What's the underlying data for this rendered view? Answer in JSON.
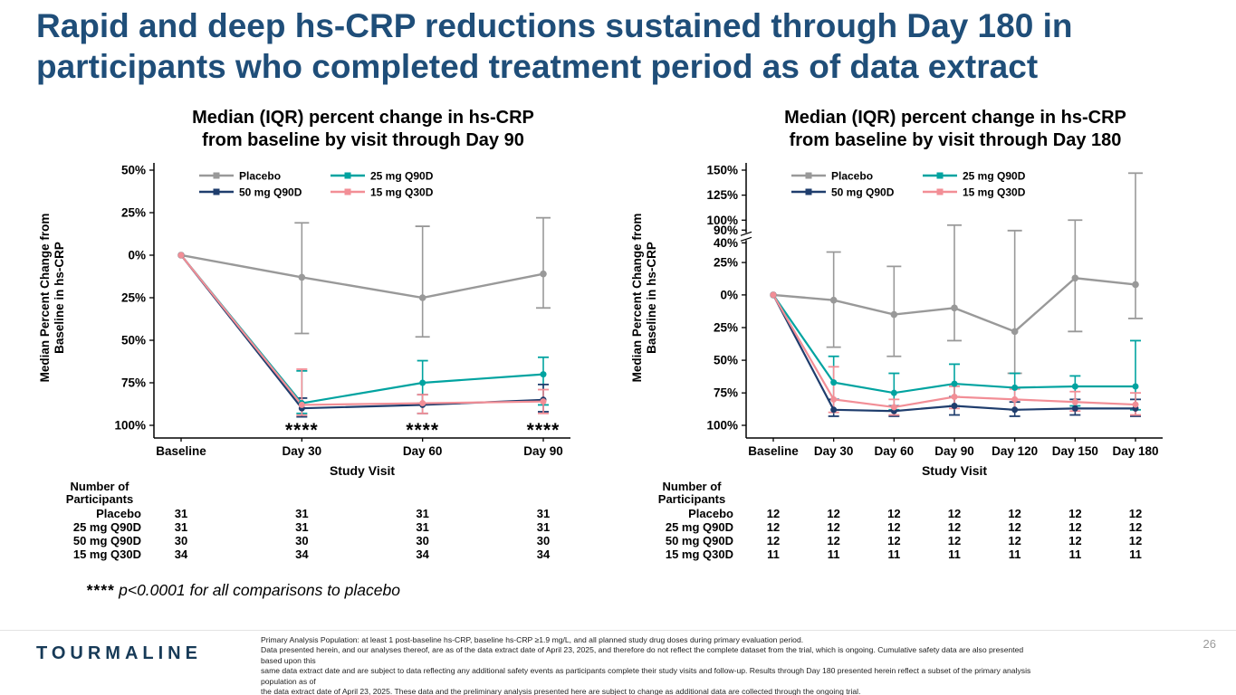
{
  "slide": {
    "title_lines": [
      "Rapid and deep hs-CRP reductions sustained through Day 180 in",
      "participants who completed treatment period as of data extract"
    ],
    "sig_stars": "****",
    "sig_text": "p<0.0001 for all comparisons to placebo",
    "logo_text": "TOURMALINE",
    "page_number": "26",
    "disclaimer_lines": [
      "Primary Analysis Population: at least 1 post-baseline hs-CRP, baseline hs-CRP ≥1.9 mg/L, and all planned study drug doses during primary evaluation period.",
      "Data presented herein, and our analyses thereof, are as of the data extract date of April 23, 2025, and therefore do not reflect the complete dataset from the trial, which is ongoing.  Cumulative safety data are also presented based upon this",
      "same data extract date and are subject to data reflecting any additional safety events as participants complete their study visits and follow-up. Results through Day 180 presented herein reflect a subset of the primary analysis population as of",
      "the data extract date of April 23, 2025. These data and the preliminary analysis presented here are subject to change as additional data are collected through the ongoing trial."
    ]
  },
  "colors": {
    "title": "#1f4e79",
    "placebo": "#999999",
    "teal": "#00a3a0",
    "navy": "#1f3d6d",
    "pink": "#f28e96",
    "axis": "#000000",
    "logo": "#173a57",
    "page_number": "#9a9a9a"
  },
  "chart_data": [
    {
      "type": "line",
      "title_lines": [
        "Median (IQR) percent change in hs-CRP",
        "from baseline by visit through Day 90"
      ],
      "ylabel_lines": [
        "Median Percent Change from",
        "Baseline in hs-CRP"
      ],
      "xlabel": "Study Visit",
      "categories": [
        "Baseline",
        "Day 30",
        "Day 60",
        "Day 90"
      ],
      "y_ticks": [
        {
          "label": "50%",
          "value": 50,
          "pos": 0.0
        },
        {
          "label": "25%",
          "value": 25,
          "pos": 0.1667
        },
        {
          "label": "0%",
          "value": 0,
          "pos": 0.3333
        },
        {
          "label": "25%",
          "value": -25,
          "pos": 0.5
        },
        {
          "label": "50%",
          "value": -50,
          "pos": 0.6667
        },
        {
          "label": "75%",
          "value": -75,
          "pos": 0.8333
        },
        {
          "label": "100%",
          "value": -100,
          "pos": 1.0
        }
      ],
      "axis_break_pos": null,
      "series": [
        {
          "name": "Placebo",
          "color": "placebo",
          "median": [
            0,
            -13,
            -25,
            -11
          ],
          "iqr_hi": [
            null,
            19,
            17,
            22
          ],
          "iqr_lo": [
            null,
            -46,
            -48,
            -31
          ]
        },
        {
          "name": "25 mg Q90D",
          "color": "teal",
          "median": [
            0,
            -87,
            -75,
            -70
          ],
          "iqr_hi": [
            null,
            -68,
            -62,
            -60
          ],
          "iqr_lo": [
            null,
            -93,
            -87,
            -88
          ]
        },
        {
          "name": "50 mg Q90D",
          "color": "navy",
          "median": [
            0,
            -90,
            -88,
            -85
          ],
          "iqr_hi": [
            null,
            -84,
            -82,
            -76
          ],
          "iqr_lo": [
            null,
            -95,
            -93,
            -92
          ]
        },
        {
          "name": "15 mg Q30D",
          "color": "pink",
          "median": [
            0,
            -88,
            -87,
            -86
          ],
          "iqr_hi": [
            null,
            -67,
            -82,
            -79
          ],
          "iqr_lo": [
            null,
            -94,
            -93,
            -93
          ]
        }
      ],
      "legend_rows": [
        [
          "Placebo",
          "25 mg Q90D"
        ],
        [
          "50 mg Q90D",
          "15 mg Q30D"
        ]
      ],
      "significance": {
        "symbol": "****",
        "category_indices": [
          1,
          2,
          3
        ]
      },
      "participants": {
        "header_lines": [
          "Number of",
          "Participants"
        ],
        "rows": [
          {
            "label": "Placebo",
            "counts": [
              31,
              31,
              31,
              31
            ]
          },
          {
            "label": "25 mg Q90D",
            "counts": [
              31,
              31,
              31,
              31
            ]
          },
          {
            "label": "50 mg Q90D",
            "counts": [
              30,
              30,
              30,
              30
            ]
          },
          {
            "label": "15 mg Q30D",
            "counts": [
              34,
              34,
              34,
              34
            ]
          }
        ]
      }
    },
    {
      "type": "line",
      "title_lines": [
        "Median (IQR) percent change in hs-CRP",
        "from baseline by visit through Day 180"
      ],
      "ylabel_lines": [
        "Median Percent Change from",
        "Baseline in hs-CRP"
      ],
      "xlabel": "Study Visit",
      "categories": [
        "Baseline",
        "Day 30",
        "Day 60",
        "Day 90",
        "Day 120",
        "Day 150",
        "Day 180"
      ],
      "y_ticks": [
        {
          "label": "150%",
          "value": 150,
          "pos": 0.0
        },
        {
          "label": "125%",
          "value": 125,
          "pos": 0.098
        },
        {
          "label": "100%",
          "value": 100,
          "pos": 0.196
        },
        {
          "label": "90%",
          "value": 90,
          "pos": 0.235
        },
        {
          "label": "40%",
          "value": 40,
          "pos": 0.285
        },
        {
          "label": "25%",
          "value": 25,
          "pos": 0.362
        },
        {
          "label": "0%",
          "value": 0,
          "pos": 0.489
        },
        {
          "label": "25%",
          "value": -25,
          "pos": 0.617
        },
        {
          "label": "50%",
          "value": -50,
          "pos": 0.745
        },
        {
          "label": "75%",
          "value": -75,
          "pos": 0.873
        },
        {
          "label": "100%",
          "value": -100,
          "pos": 1.0
        }
      ],
      "axis_break_pos": 0.26,
      "series": [
        {
          "name": "Placebo",
          "color": "placebo",
          "median": [
            0,
            -4,
            -15,
            -10,
            -28,
            13,
            8
          ],
          "iqr_hi": [
            null,
            33,
            22,
            95,
            88,
            100,
            147
          ],
          "iqr_lo": [
            null,
            -40,
            -47,
            -35,
            -60,
            -28,
            -18
          ]
        },
        {
          "name": "25 mg Q90D",
          "color": "teal",
          "median": [
            0,
            -67,
            -75,
            -68,
            -71,
            -70,
            -70
          ],
          "iqr_hi": [
            null,
            -47,
            -60,
            -53,
            -60,
            -62,
            -35
          ],
          "iqr_lo": [
            null,
            -80,
            -88,
            -85,
            -88,
            -85,
            -88
          ]
        },
        {
          "name": "50 mg Q90D",
          "color": "navy",
          "median": [
            0,
            -88,
            -89,
            -85,
            -88,
            -87,
            -87
          ],
          "iqr_hi": [
            null,
            -80,
            -85,
            -78,
            -82,
            -80,
            -80
          ],
          "iqr_lo": [
            null,
            -93,
            -93,
            -92,
            -93,
            -92,
            -93
          ]
        },
        {
          "name": "15 mg Q30D",
          "color": "pink",
          "median": [
            0,
            -80,
            -86,
            -78,
            -80,
            -82,
            -84
          ],
          "iqr_hi": [
            null,
            -55,
            -80,
            -70,
            -72,
            -74,
            -75
          ],
          "iqr_lo": [
            null,
            -90,
            -92,
            -87,
            -88,
            -89,
            -92
          ]
        }
      ],
      "legend_rows": [
        [
          "Placebo",
          "25 mg Q90D"
        ],
        [
          "50 mg Q90D",
          "15 mg Q30D"
        ]
      ],
      "significance": null,
      "participants": {
        "header_lines": [
          "Number of",
          "Participants"
        ],
        "rows": [
          {
            "label": "Placebo",
            "counts": [
              12,
              12,
              12,
              12,
              12,
              12,
              12
            ]
          },
          {
            "label": "25 mg Q90D",
            "counts": [
              12,
              12,
              12,
              12,
              12,
              12,
              12
            ]
          },
          {
            "label": "50 mg Q90D",
            "counts": [
              12,
              12,
              12,
              12,
              12,
              12,
              12
            ]
          },
          {
            "label": "15 mg Q30D",
            "counts": [
              11,
              11,
              11,
              11,
              11,
              11,
              11
            ]
          }
        ]
      }
    }
  ]
}
